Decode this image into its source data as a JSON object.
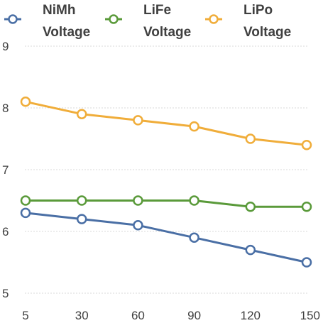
{
  "chart_data": {
    "type": "line",
    "x": [
      "5",
      "30",
      "60",
      "90",
      "120",
      "150"
    ],
    "ylim": [
      5,
      9
    ],
    "yticks": [
      "5",
      "6",
      "7",
      "8",
      "9"
    ],
    "grid": true,
    "legend_position": "top",
    "series": [
      {
        "name_line1": "NiMh",
        "name_line2": "Voltage",
        "color": "#4a6fa5",
        "values": [
          6.3,
          6.2,
          6.1,
          5.9,
          5.7,
          5.5
        ]
      },
      {
        "name_line1": "LiFe",
        "name_line2": "Voltage",
        "color": "#5a9a3a",
        "values": [
          6.5,
          6.5,
          6.5,
          6.5,
          6.4,
          6.4
        ]
      },
      {
        "name_line1": "LiPo",
        "name_line2": "Voltage",
        "color": "#f0ad3a",
        "values": [
          8.1,
          7.9,
          7.8,
          7.7,
          7.5,
          7.4
        ]
      }
    ]
  }
}
